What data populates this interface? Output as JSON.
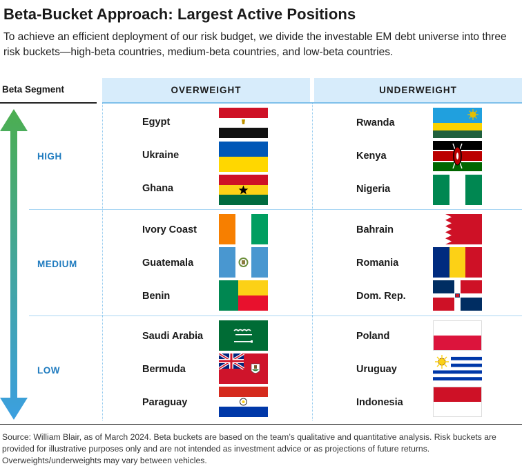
{
  "title": "Beta-Bucket Approach: Largest Active Positions",
  "subtitle": "To achieve an efficient deployment of our risk budget, we divide the investable EM debt universe into three risk buckets—high-beta countries, medium-beta countries, and low-beta countries.",
  "header": {
    "segment": "Beta Segment",
    "overweight": "OVERWEIGHT",
    "underweight": "UNDERWEIGHT"
  },
  "segments": [
    {
      "label": "HIGH",
      "overweight": [
        "Egypt",
        "Ukraine",
        "Ghana"
      ],
      "underweight": [
        "Rwanda",
        "Kenya",
        "Nigeria"
      ]
    },
    {
      "label": "MEDIUM",
      "overweight": [
        "Ivory Coast",
        "Guatemala",
        "Benin"
      ],
      "underweight": [
        "Bahrain",
        "Romania",
        "Dom. Rep."
      ]
    },
    {
      "label": "LOW",
      "overweight": [
        "Saudi Arabia",
        "Bermuda",
        "Paraguay"
      ],
      "underweight": [
        "Poland",
        "Uruguay",
        "Indonesia"
      ]
    }
  ],
  "flag_icons": {
    "overweight": [
      [
        "egypt-flag-icon",
        "ukraine-flag-icon",
        "ghana-flag-icon"
      ],
      [
        "ivory-coast-flag-icon",
        "guatemala-flag-icon",
        "benin-flag-icon"
      ],
      [
        "saudi-arabia-flag-icon",
        "bermuda-flag-icon",
        "paraguay-flag-icon"
      ]
    ],
    "underweight": [
      [
        "rwanda-flag-icon",
        "kenya-flag-icon",
        "nigeria-flag-icon"
      ],
      [
        "bahrain-flag-icon",
        "romania-flag-icon",
        "dom-rep-flag-icon"
      ],
      [
        "poland-flag-icon",
        "uruguay-flag-icon",
        "indonesia-flag-icon"
      ]
    ]
  },
  "colors": {
    "header_fill": "#d7ecfb",
    "segment_label": "#1f7bbf",
    "arrow_top": "#4cae50",
    "arrow_bottom": "#3b9fe0"
  },
  "source": "Source: William Blair, as of March 2024. Beta buckets are based on the team’s qualitative and quantitative analysis. Risk buckets are provided for illustrative purposes only and are not intended as investment advice or as projections of future returns. Overweights/underweights may vary between vehicles."
}
